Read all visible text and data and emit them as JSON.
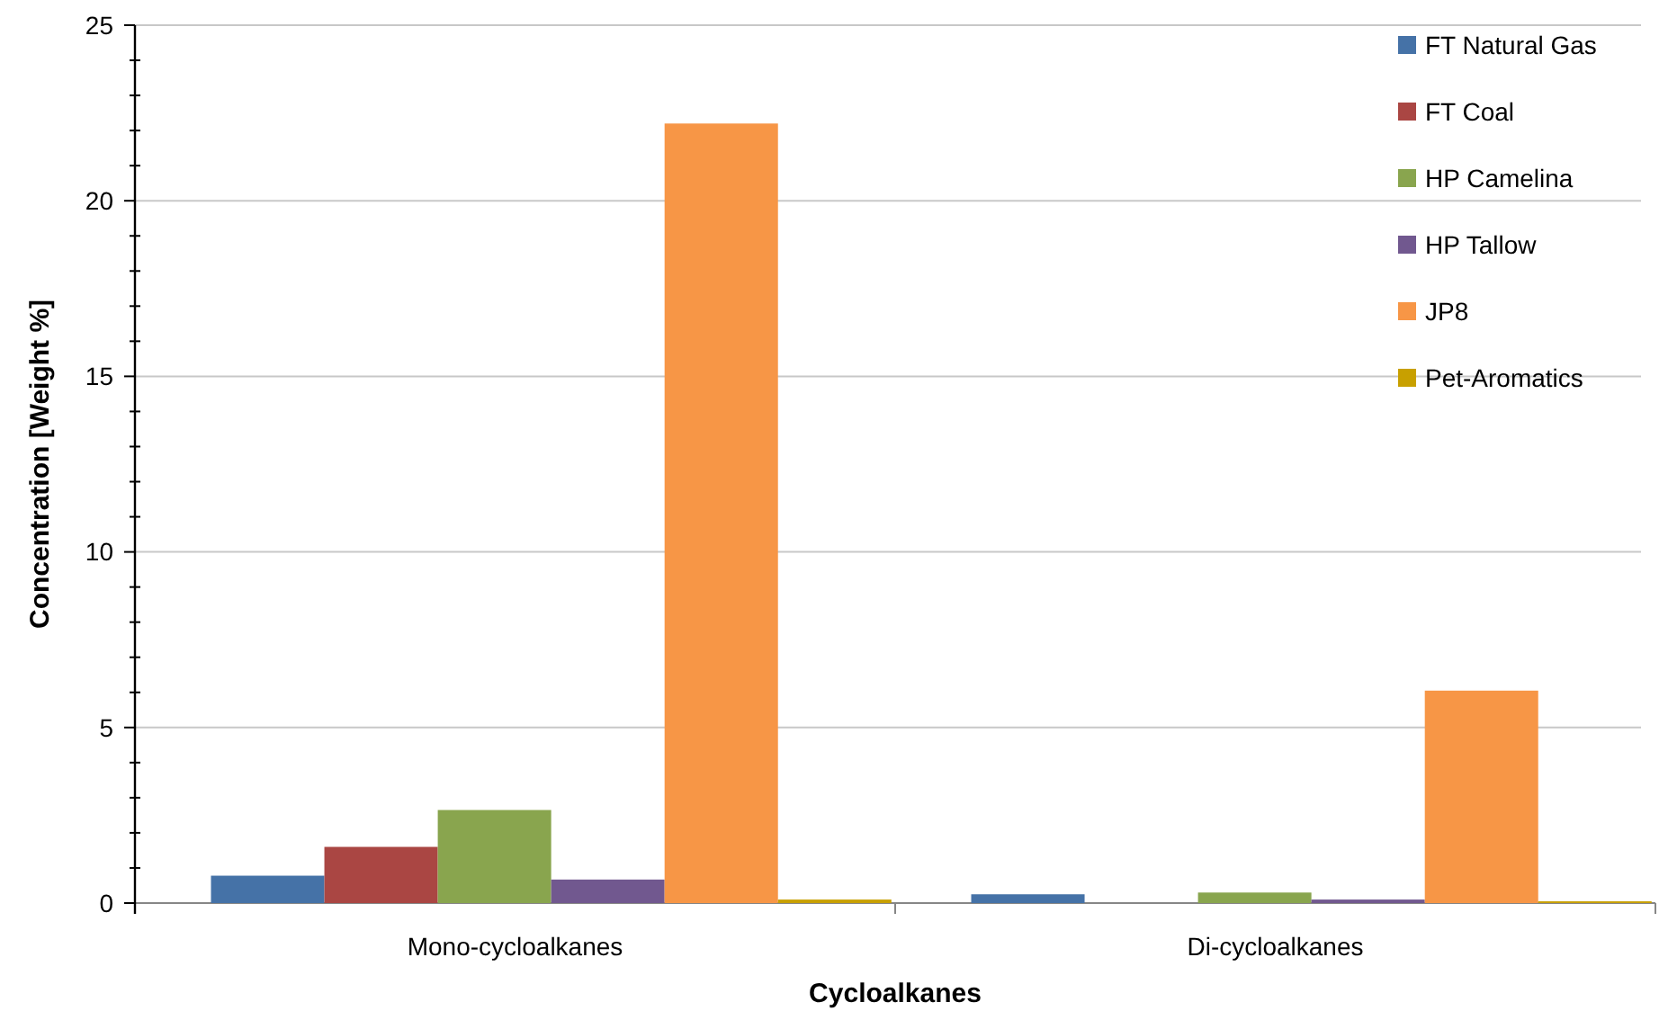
{
  "chart_data": {
    "type": "bar",
    "xlabel": "Cycloalkanes",
    "ylabel": "Concentration [Weight %]",
    "categories": [
      "Mono-cycloalkanes",
      "Di-cycloalkanes"
    ],
    "series": [
      {
        "name": "FT Natural Gas",
        "color": "#4572a7",
        "values": [
          0.78,
          0.25
        ]
      },
      {
        "name": "FT Coal",
        "color": "#aa4643",
        "values": [
          1.6,
          0
        ]
      },
      {
        "name": "HP Camelina",
        "color": "#89a54e",
        "values": [
          2.65,
          0.3
        ]
      },
      {
        "name": "HP Tallow",
        "color": "#71588f",
        "values": [
          0.67,
          0.1
        ]
      },
      {
        "name": "JP8",
        "color": "#f79646",
        "values": [
          22.2,
          6.05
        ]
      },
      {
        "name": "Pet-Aromatics",
        "color": "#c8a000",
        "values": [
          0.1,
          0.05
        ]
      }
    ],
    "ylim": [
      0,
      25
    ],
    "yticks": [
      0,
      {
        "value": 1,
        "label": null
      },
      {
        "value": 2,
        "label": null
      },
      {
        "value": 3,
        "label": null
      },
      {
        "value": 4,
        "label": null
      },
      5,
      {
        "value": 6,
        "label": null
      },
      {
        "value": 7,
        "label": null
      },
      {
        "value": 8,
        "label": null
      },
      {
        "value": 9,
        "label": null
      },
      10,
      {
        "value": 11,
        "label": null
      },
      {
        "value": 12,
        "label": null
      },
      {
        "value": 13,
        "label": null
      },
      {
        "value": 14,
        "label": null
      },
      15,
      {
        "value": 16,
        "label": null
      },
      {
        "value": 17,
        "label": null
      },
      {
        "value": 18,
        "label": null
      },
      {
        "value": 19,
        "label": null
      },
      20,
      {
        "value": 21,
        "label": null
      },
      {
        "value": 22,
        "label": null
      },
      {
        "value": 23,
        "label": null
      },
      {
        "value": 24,
        "label": null
      },
      25
    ],
    "grid": "y",
    "legend": "top right"
  }
}
